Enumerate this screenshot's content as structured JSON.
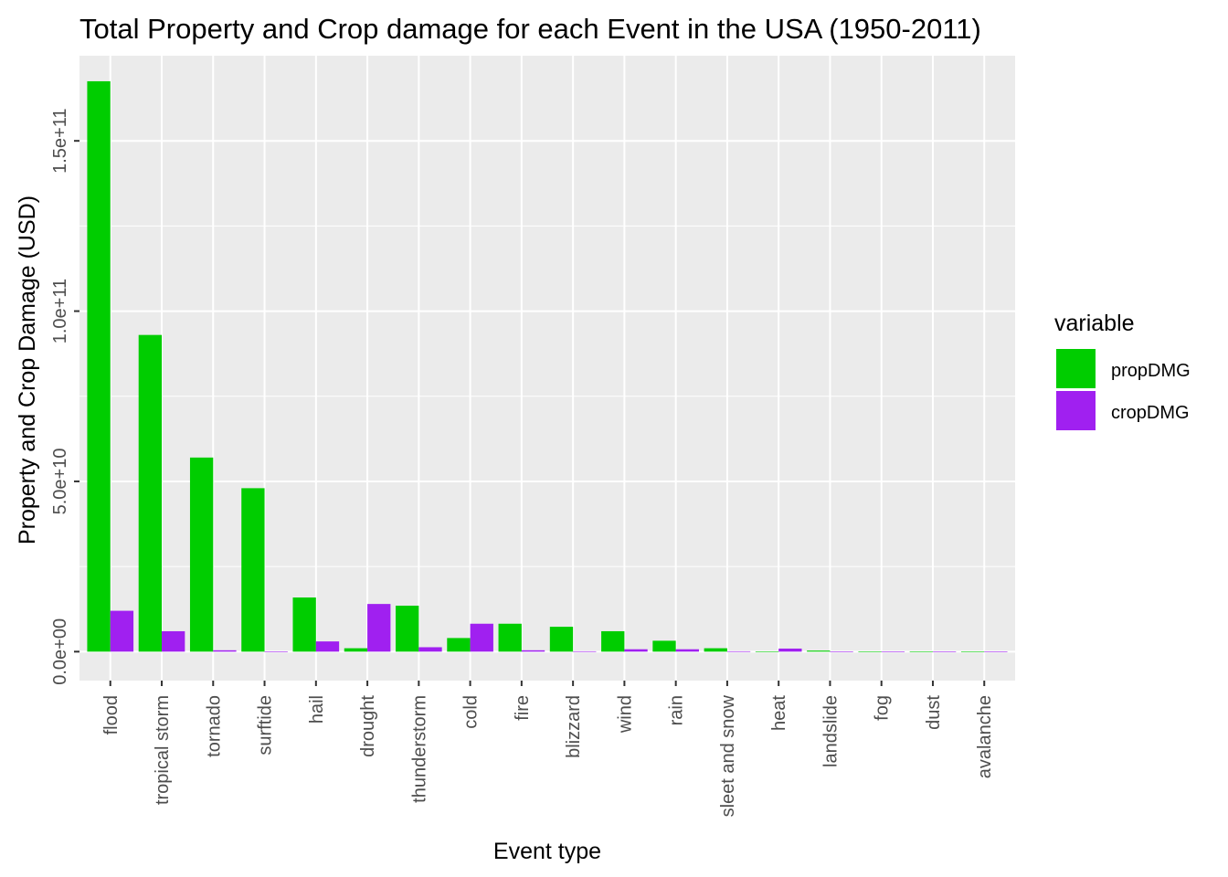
{
  "chart_data": {
    "type": "bar",
    "title": "Total Property and Crop damage for each Event in the USA (1950-2011)",
    "xlabel": "Event type",
    "ylabel": "Property and Crop Damage (USD)",
    "ylim": [
      -8500000000,
      175000000000
    ],
    "y_ticks": [
      0,
      50000000000,
      100000000000,
      150000000000
    ],
    "y_tick_labels": [
      "0.0e+00",
      "5.0e+10",
      "1.0e+11",
      "1.5e+11"
    ],
    "categories": [
      "flood",
      "tropical storm",
      "tornado",
      "surftide",
      "hail",
      "drought",
      "thunderstorm",
      "cold",
      "fire",
      "blizzard",
      "wind",
      "rain",
      "sleet and snow",
      "heat",
      "landslide",
      "fog",
      "dust",
      "avalanche"
    ],
    "series": [
      {
        "name": "propDMG",
        "color": "#00cd00",
        "values": [
          167500000000,
          93000000000,
          57000000000,
          48000000000,
          15900000000,
          1000000000,
          13500000000,
          4000000000,
          8200000000,
          7300000000,
          6000000000,
          3200000000,
          1000000000,
          20000000,
          300000000,
          20000000,
          10000000,
          4000000
        ]
      },
      {
        "name": "cropDMG",
        "color": "#a020f0",
        "values": [
          12000000000,
          6000000000,
          400000000,
          0,
          3000000000,
          14000000000,
          1300000000,
          8200000000,
          400000000,
          100000000,
          700000000,
          700000000,
          100000000,
          900000000,
          20000000,
          0,
          3000000,
          0
        ]
      }
    ],
    "legend": {
      "title": "variable",
      "position": "right"
    },
    "grid": true,
    "panel_background": "#ebebeb",
    "grid_color": "#ffffff"
  }
}
